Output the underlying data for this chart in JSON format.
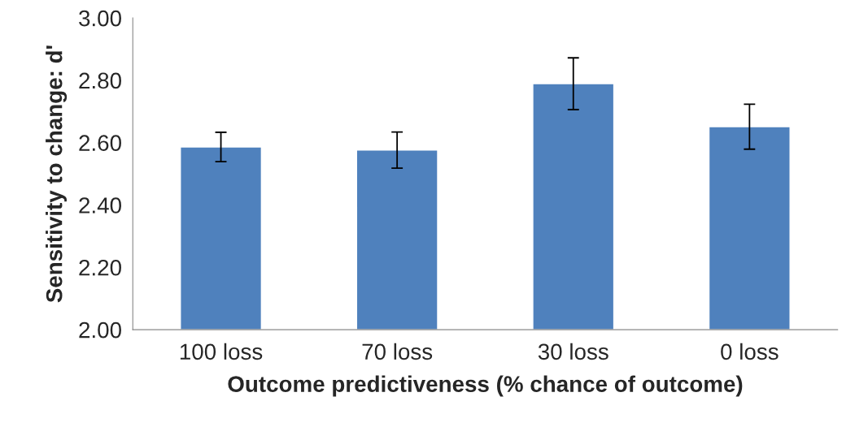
{
  "chart_data": {
    "type": "bar",
    "xlabel": "Outcome predictiveness (% chance of outcome)",
    "ylabel": "Sensitivity to change: d'",
    "categories": [
      "100 loss",
      "70 loss",
      "30 loss",
      "0 loss"
    ],
    "values": [
      2.586,
      2.576,
      2.789,
      2.651
    ],
    "errors": [
      0.047,
      0.058,
      0.083,
      0.072
    ],
    "color": "#4f81bd",
    "ylim": [
      2.0,
      3.0
    ],
    "yticks": [
      {
        "value": 2.0,
        "label": "2.00"
      },
      {
        "value": 2.2,
        "label": "2.20"
      },
      {
        "value": 2.4,
        "label": "2.40"
      },
      {
        "value": 2.6,
        "label": "2.60"
      },
      {
        "value": 2.8,
        "label": "2.80"
      },
      {
        "value": 3.0,
        "label": "3.00"
      }
    ],
    "grid": false
  }
}
